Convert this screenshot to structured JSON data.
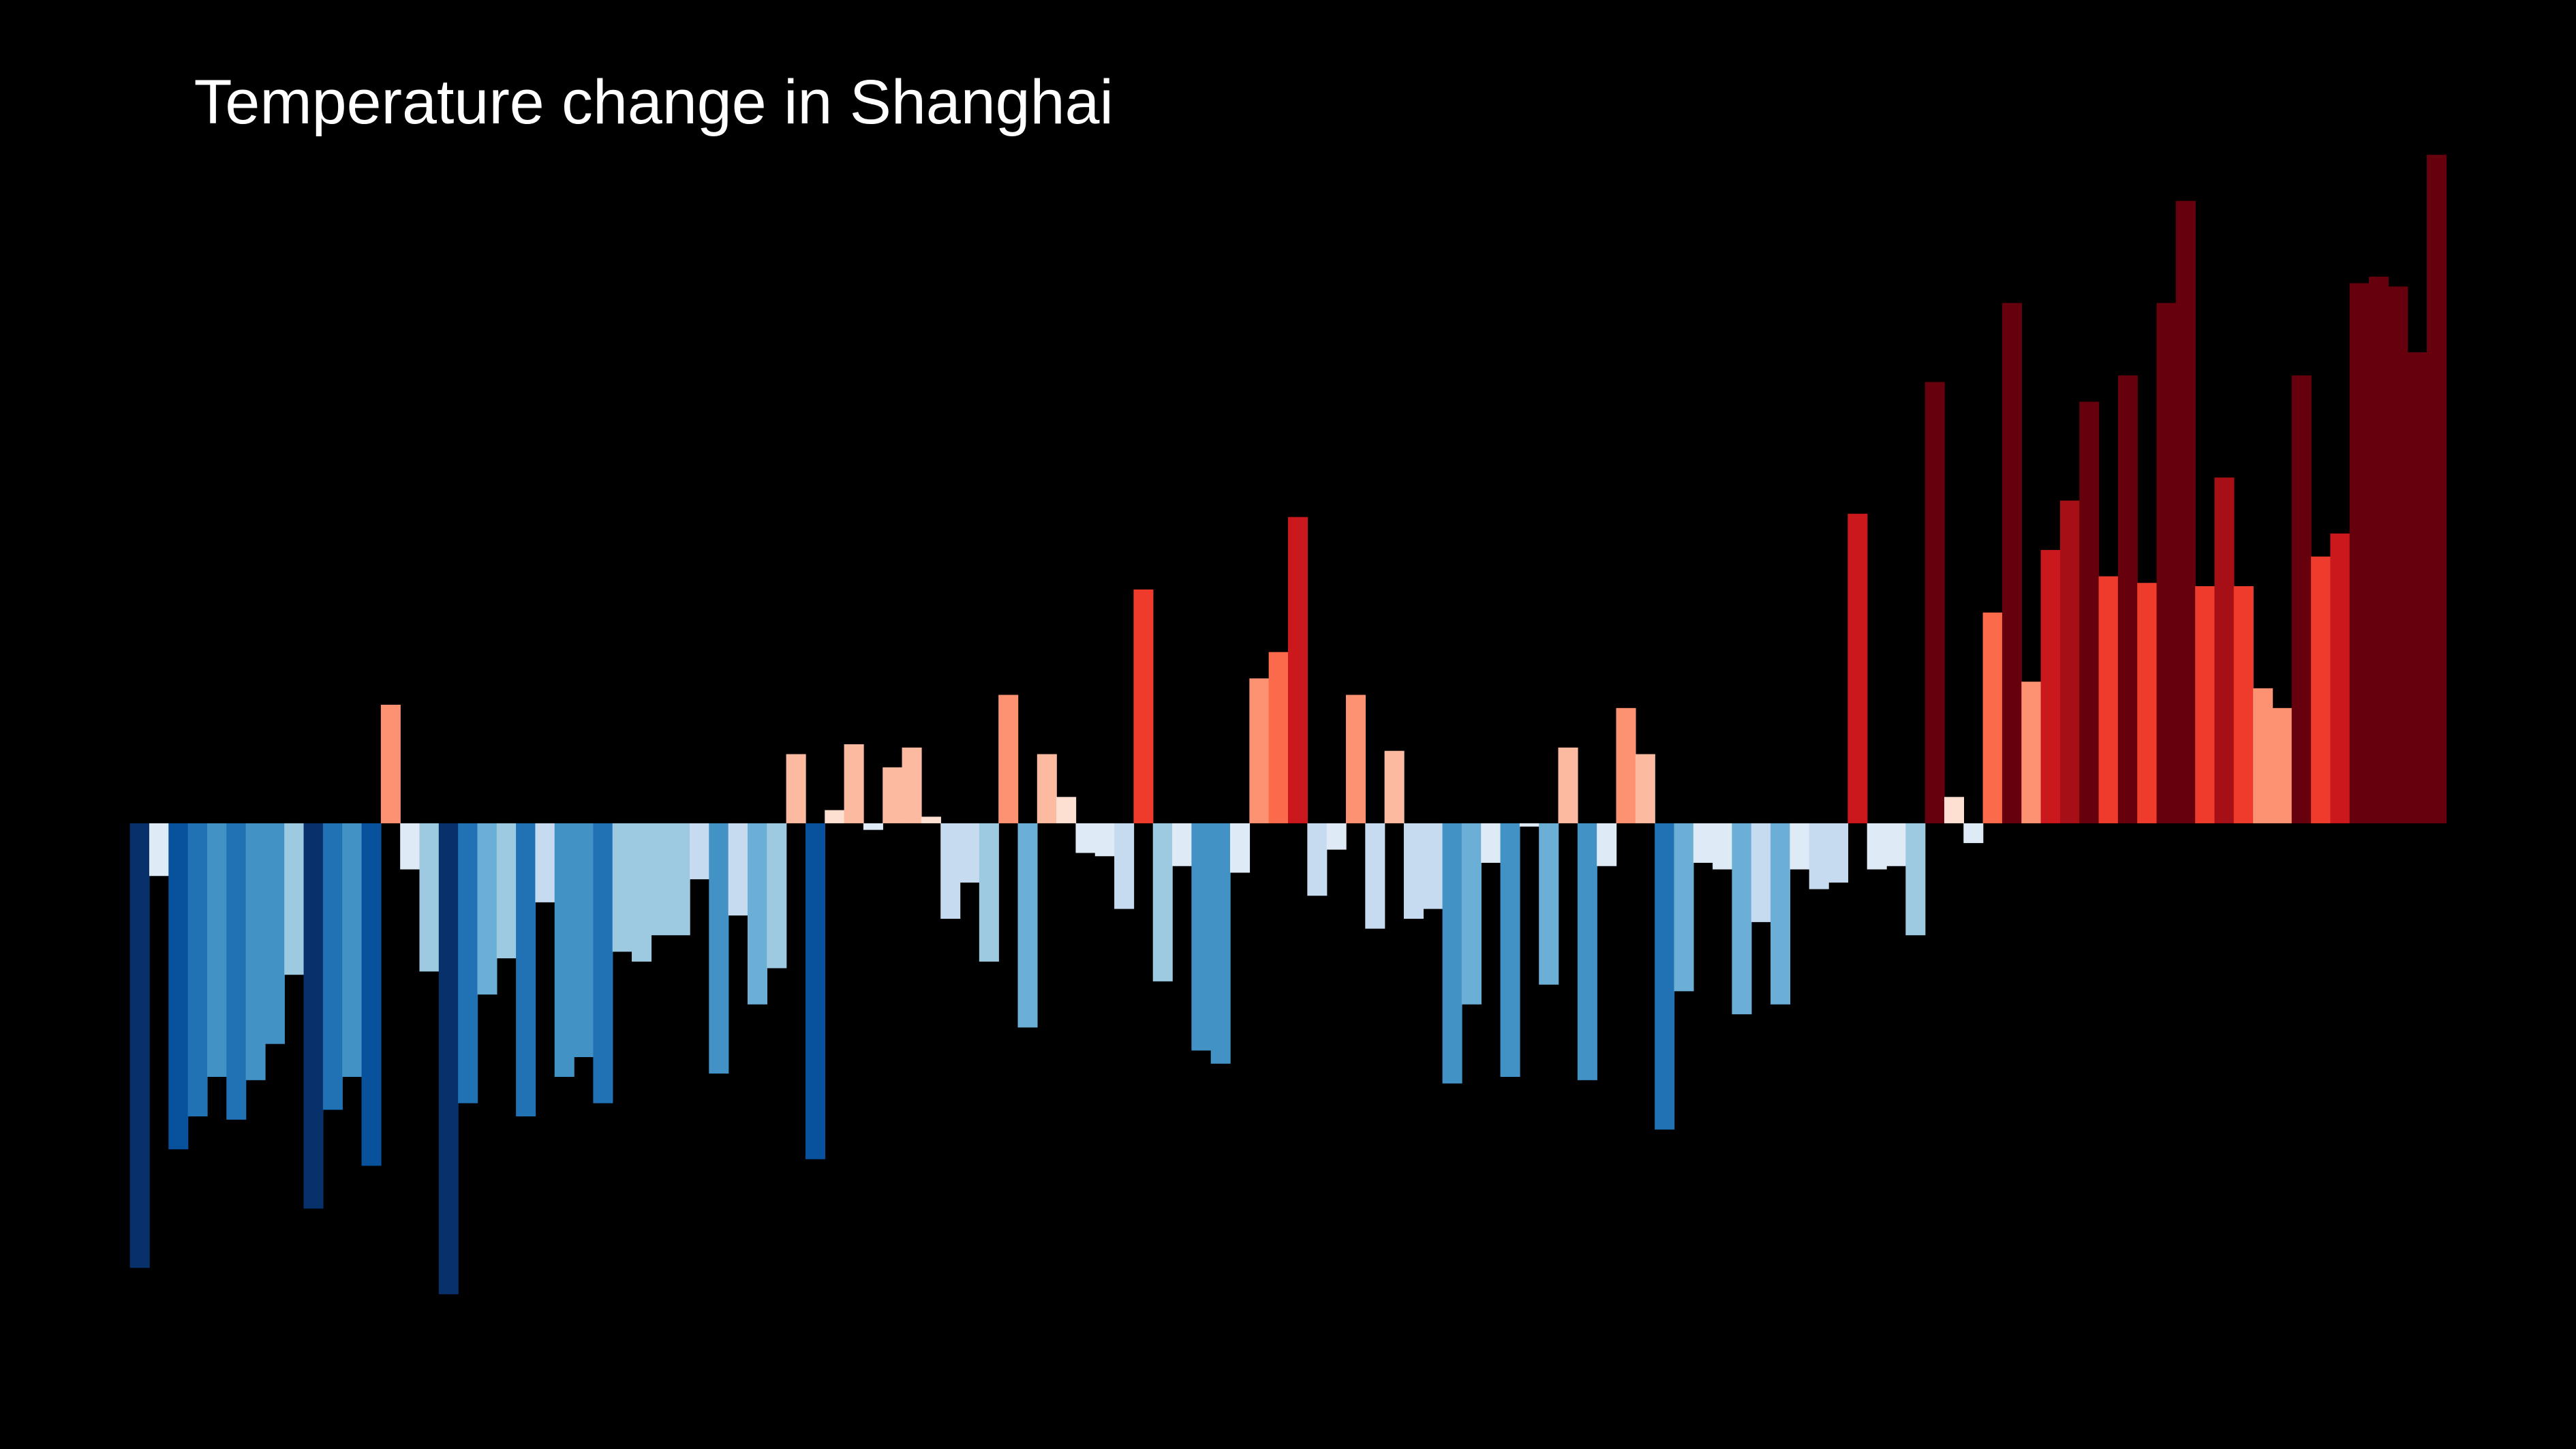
{
  "chart_data": {
    "type": "bar",
    "title": "Temperature change in Shanghai",
    "values": [
      -1.35,
      -0.16,
      -0.99,
      -0.89,
      -0.77,
      -0.9,
      -0.78,
      -0.67,
      -0.46,
      -1.17,
      -0.87,
      -0.77,
      -1.04,
      0.36,
      -0.14,
      -0.45,
      -1.43,
      -0.85,
      -0.52,
      -0.41,
      -0.89,
      -0.24,
      -0.77,
      -0.71,
      -0.85,
      -0.39,
      -0.42,
      -0.34,
      -0.34,
      -0.17,
      -0.76,
      -0.28,
      -0.55,
      -0.44,
      0.21,
      -1.02,
      0.04,
      0.24,
      -0.02,
      0.17,
      0.23,
      0.02,
      -0.29,
      -0.18,
      -0.42,
      0.39,
      -0.62,
      0.21,
      0.08,
      -0.09,
      -0.1,
      -0.26,
      0.71,
      -0.48,
      -0.13,
      -0.69,
      -0.73,
      -0.15,
      0.44,
      0.52,
      0.93,
      -0.22,
      -0.08,
      0.39,
      -0.32,
      0.22,
      -0.29,
      -0.26,
      -0.79,
      -0.55,
      -0.12,
      -0.77,
      -0.01,
      -0.49,
      0.23,
      -0.78,
      -0.13,
      0.35,
      0.21,
      -0.93,
      -0.51,
      -0.12,
      -0.14,
      -0.58,
      -0.3,
      -0.55,
      -0.14,
      -0.2,
      -0.18,
      0.94,
      -0.14,
      -0.13,
      -0.34,
      1.34,
      0.08,
      -0.06,
      0.64,
      1.58,
      0.43,
      0.83,
      0.98,
      1.28,
      0.75,
      1.36,
      0.73,
      1.58,
      1.89,
      0.72,
      1.05,
      0.72,
      0.41,
      0.35,
      1.36,
      0.81,
      0.88,
      1.64,
      1.66,
      1.63,
      1.43,
      2.03
    ],
    "ylim": [
      -1.9,
      2.5
    ],
    "colormap": [
      "#08306b",
      "#08519c",
      "#2171b5",
      "#4292c6",
      "#6baed6",
      "#9ecae1",
      "#c6dbef",
      "#deebf7",
      "#fee0d2",
      "#fcbba1",
      "#fc9272",
      "#fb6a4a",
      "#ef3b2c",
      "#cb181d",
      "#a50f15",
      "#67000d"
    ],
    "clim": [
      -1.3,
      1.3
    ],
    "grid": false
  }
}
